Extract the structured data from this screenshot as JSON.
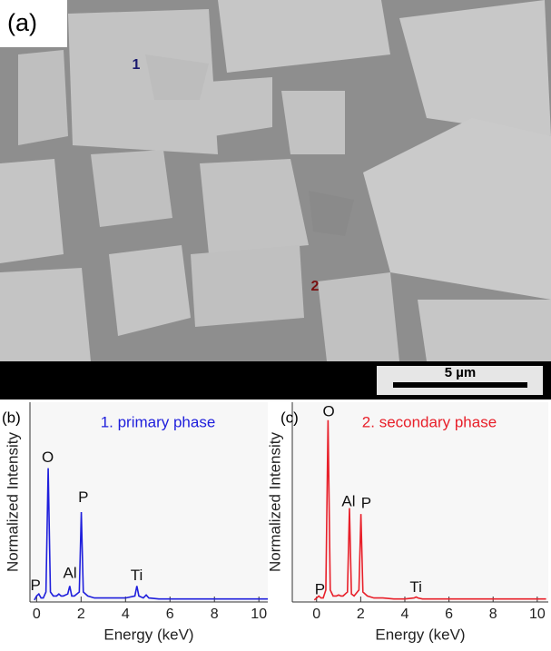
{
  "image": {
    "label": "(a)",
    "markers": [
      "1",
      "2"
    ],
    "scale_bar": "5 µm"
  },
  "chart_data": [
    {
      "type": "line",
      "panel": "(b)",
      "xlabel": "Energy (keV)",
      "ylabel": "Normalized Intensity",
      "xlim": [
        -0.3,
        10.4
      ],
      "xticks": [
        0,
        2,
        4,
        6,
        8,
        10
      ],
      "ylim": [
        0,
        1
      ],
      "x": [
        -0.1,
        0,
        0.1,
        0.2,
        0.3,
        0.42,
        0.52,
        0.62,
        0.75,
        0.9,
        1.0,
        1.1,
        1.2,
        1.4,
        1.49,
        1.58,
        1.7,
        1.92,
        2.01,
        2.1,
        2.3,
        2.6,
        3.0,
        3.5,
        4.0,
        4.42,
        4.51,
        4.6,
        4.8,
        4.93,
        5.05,
        5.5,
        6,
        7,
        8,
        9,
        10,
        10.4
      ],
      "series": [
        {
          "name": "1. primary phase",
          "color": "#1f1fdc",
          "values": [
            0.01,
            0.03,
            0.04,
            0.02,
            0.02,
            0.05,
            0.67,
            0.05,
            0.03,
            0.03,
            0.04,
            0.03,
            0.03,
            0.04,
            0.08,
            0.03,
            0.03,
            0.05,
            0.45,
            0.05,
            0.03,
            0.02,
            0.02,
            0.02,
            0.02,
            0.03,
            0.08,
            0.03,
            0.02,
            0.035,
            0.02,
            0.015,
            0.015,
            0.015,
            0.015,
            0.015,
            0.015,
            0.015
          ]
        }
      ],
      "annotations": [
        {
          "text": "P",
          "x": -0.05,
          "y": 0.08
        },
        {
          "text": "O",
          "x": 0.5,
          "y": 0.72
        },
        {
          "text": "Al",
          "x": 1.5,
          "y": 0.14
        },
        {
          "text": "P",
          "x": 2.1,
          "y": 0.52
        },
        {
          "text": "Ti",
          "x": 4.5,
          "y": 0.13
        }
      ]
    },
    {
      "type": "line",
      "panel": "(c)",
      "xlabel": "Energy (keV)",
      "ylabel": "Normalized Intensity",
      "xlim": [
        -1.1,
        10.5
      ],
      "xticks": [
        0,
        2,
        4,
        6,
        8,
        10
      ],
      "ylim": [
        0,
        1
      ],
      "x": [
        -0.1,
        0,
        0.1,
        0.2,
        0.3,
        0.42,
        0.52,
        0.62,
        0.75,
        0.9,
        1.0,
        1.1,
        1.2,
        1.4,
        1.49,
        1.58,
        1.7,
        1.92,
        2.01,
        2.1,
        2.3,
        2.6,
        3.0,
        3.5,
        4.0,
        4.42,
        4.51,
        4.6,
        4.8,
        4.93,
        5.05,
        5.5,
        6,
        7,
        8,
        9,
        10,
        10.4
      ],
      "series": [
        {
          "name": "2. secondary phase",
          "color": "#e8202a",
          "values": [
            0.01,
            0.02,
            0.03,
            0.02,
            0.02,
            0.06,
            0.91,
            0.06,
            0.03,
            0.03,
            0.035,
            0.03,
            0.03,
            0.05,
            0.47,
            0.04,
            0.03,
            0.06,
            0.44,
            0.05,
            0.03,
            0.02,
            0.02,
            0.015,
            0.015,
            0.02,
            0.025,
            0.02,
            0.015,
            0.015,
            0.015,
            0.015,
            0.015,
            0.015,
            0.015,
            0.015,
            0.015,
            0.015
          ]
        }
      ],
      "annotations": [
        {
          "text": "O",
          "x": 0.55,
          "y": 0.95
        },
        {
          "text": "P",
          "x": 0.15,
          "y": 0.06
        },
        {
          "text": "Al",
          "x": 1.45,
          "y": 0.5
        },
        {
          "text": "P",
          "x": 2.25,
          "y": 0.49
        },
        {
          "text": "Ti",
          "x": 4.5,
          "y": 0.07
        }
      ]
    }
  ]
}
